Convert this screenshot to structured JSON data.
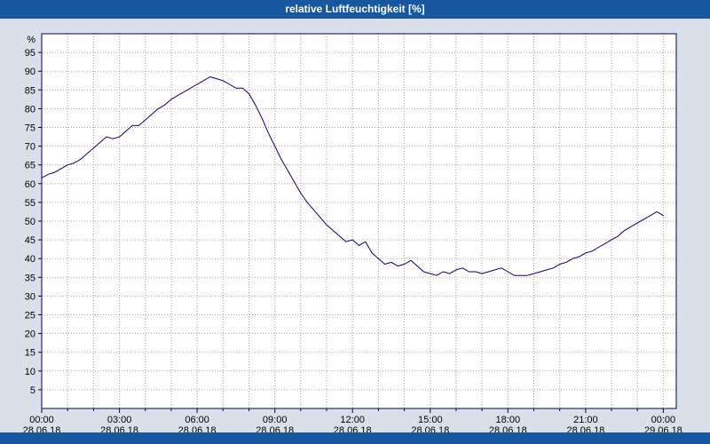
{
  "window": {
    "title": "relative Luftfeuchtigkeit [%]"
  },
  "colors": {
    "titlebar_bg": "#16579f",
    "titlebar_text": "#ffffff",
    "window_bg": "#d9e0ea",
    "plot_bg": "#ffffff",
    "plot_border": "#000060",
    "grid": "#a6a6a6",
    "line": "#000080",
    "label": "#000000"
  },
  "chart_data": {
    "type": "line",
    "title": "relative Luftfeuchtigkeit [%]",
    "ylabel": "%",
    "xlabel": "",
    "ylim": [
      0,
      100
    ],
    "xlim_hours": [
      0,
      24.5
    ],
    "grid": true,
    "legend": "none",
    "y_ticks": [
      5,
      10,
      15,
      20,
      25,
      30,
      35,
      40,
      45,
      50,
      55,
      60,
      65,
      70,
      75,
      80,
      85,
      90,
      95
    ],
    "x_ticks": [
      {
        "hour": 0,
        "time": "00:00",
        "date": "28.06.18"
      },
      {
        "hour": 3,
        "time": "03:00",
        "date": "28.06.18"
      },
      {
        "hour": 6,
        "time": "06:00",
        "date": "28.06.18"
      },
      {
        "hour": 9,
        "time": "09:00",
        "date": "28.06.18"
      },
      {
        "hour": 12,
        "time": "12:00",
        "date": "28.06.18"
      },
      {
        "hour": 15,
        "time": "15:00",
        "date": "28.06.18"
      },
      {
        "hour": 18,
        "time": "18:00",
        "date": "28.06.18"
      },
      {
        "hour": 21,
        "time": "21:00",
        "date": "28.06.18"
      },
      {
        "hour": 24,
        "time": "00:00",
        "date": "29.06.18"
      }
    ],
    "series": [
      {
        "name": "relative Luftfeuchtigkeit [%]",
        "color": "#000080",
        "x_start_hour": 0,
        "x_interval_hours": 0.25,
        "values": [
          61.5,
          62.5,
          63,
          64,
          65,
          65.5,
          66.5,
          68,
          69.5,
          71,
          72.5,
          72,
          72.5,
          74,
          75.5,
          75.5,
          77,
          78.5,
          80,
          81,
          82.5,
          83.5,
          84.5,
          85.5,
          86.5,
          87.5,
          88.5,
          88,
          87.5,
          86.5,
          85.5,
          85.5,
          84,
          81,
          77.5,
          73.5,
          70,
          66.5,
          63.5,
          60.5,
          57.5,
          55,
          53,
          51,
          49,
          47.5,
          46,
          44.5,
          45,
          43.5,
          44.5,
          41.5,
          40,
          38.5,
          39,
          38,
          38.5,
          39.5,
          38,
          36.5,
          36,
          35.5,
          36.5,
          36,
          37,
          37.5,
          36.5,
          36.5,
          36,
          36.5,
          37,
          37.5,
          36.5,
          35.5,
          35.5,
          35.5,
          36,
          36.5,
          37,
          37.5,
          38.5,
          39,
          40,
          40.5,
          41.5,
          42,
          43,
          44,
          45,
          46,
          47.5,
          48.5,
          49.5,
          50.5,
          51.5,
          52.5,
          51.5
        ]
      }
    ]
  }
}
